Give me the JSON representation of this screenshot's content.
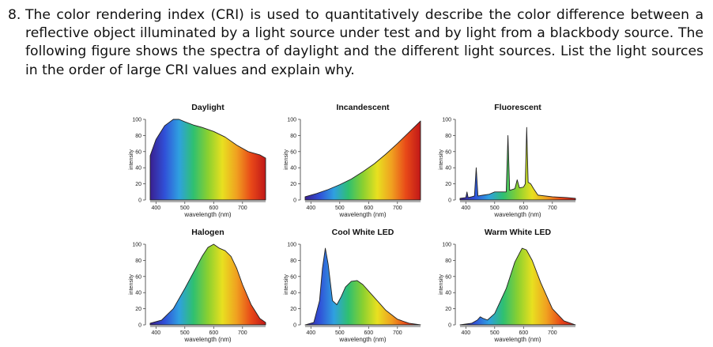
{
  "question": {
    "number": "8.",
    "text": "The color rendering index (CRI) is used to quantitatively describe the color difference between a reflective object illuminated by a light source under test and by light from a blackbody source. The following figure shows the spectra of daylight and the different light sources. List the light sources in the order of large CRI values and explain why."
  },
  "spectrum_colors": [
    "#3a1f8f",
    "#3050d8",
    "#2fa0e0",
    "#2fc070",
    "#8ad030",
    "#e8e020",
    "#f0a020",
    "#e84818",
    "#c01818"
  ],
  "chart_data": [
    {
      "type": "area",
      "title": "Daylight",
      "xlabel": "wavelength (nm)",
      "ylabel": "intensity",
      "xlim": [
        380,
        780
      ],
      "ylim": [
        0,
        100
      ],
      "xticks": [
        "400",
        "500",
        "600",
        "700"
      ],
      "yticks": [
        "0",
        "20",
        "40",
        "60",
        "80",
        "100"
      ],
      "x": [
        380,
        400,
        430,
        460,
        480,
        500,
        530,
        560,
        600,
        640,
        680,
        720,
        760,
        780
      ],
      "y": [
        55,
        75,
        92,
        100,
        100,
        97,
        93,
        90,
        85,
        78,
        68,
        60,
        56,
        52
      ]
    },
    {
      "type": "area",
      "title": "Incandescent",
      "xlabel": "wavelength (nm)",
      "ylabel": "intensity",
      "xlim": [
        380,
        780
      ],
      "ylim": [
        0,
        100
      ],
      "xticks": [
        "400",
        "500",
        "600",
        "700"
      ],
      "yticks": [
        "0",
        "20",
        "40",
        "60",
        "80",
        "100"
      ],
      "x": [
        380,
        420,
        460,
        500,
        540,
        580,
        620,
        660,
        700,
        740,
        780
      ],
      "y": [
        4,
        8,
        13,
        19,
        26,
        35,
        45,
        57,
        70,
        84,
        98
      ]
    },
    {
      "type": "area",
      "title": "Fluorescent",
      "xlabel": "wavelength (nm)",
      "ylabel": "intensity",
      "xlim": [
        380,
        780
      ],
      "ylim": [
        0,
        100
      ],
      "xticks": [
        "400",
        "500",
        "600",
        "700"
      ],
      "yticks": [
        "0",
        "20",
        "40",
        "60",
        "80",
        "100"
      ],
      "x": [
        380,
        400,
        404,
        408,
        420,
        430,
        436,
        442,
        460,
        480,
        500,
        540,
        546,
        552,
        570,
        578,
        586,
        600,
        606,
        611,
        616,
        625,
        635,
        650,
        700,
        750,
        780
      ],
      "y": [
        2,
        3,
        10,
        3,
        4,
        5,
        40,
        5,
        6,
        7,
        10,
        10,
        80,
        12,
        14,
        25,
        15,
        16,
        20,
        90,
        22,
        20,
        14,
        6,
        4,
        3,
        2
      ]
    },
    {
      "type": "area",
      "title": "Halogen",
      "xlabel": "wavelength (nm)",
      "ylabel": "intensity",
      "xlim": [
        380,
        780
      ],
      "ylim": [
        0,
        100
      ],
      "xticks": [
        "400",
        "500",
        "600",
        "700"
      ],
      "yticks": [
        "0",
        "20",
        "40",
        "60",
        "80",
        "100"
      ],
      "x": [
        380,
        420,
        460,
        500,
        530,
        560,
        580,
        600,
        620,
        640,
        660,
        680,
        700,
        730,
        760,
        780
      ],
      "y": [
        2,
        6,
        20,
        45,
        65,
        85,
        96,
        100,
        95,
        92,
        85,
        70,
        50,
        25,
        8,
        3
      ]
    },
    {
      "type": "area",
      "title": "Cool White LED",
      "xlabel": "wavelength (nm)",
      "ylabel": "intensity",
      "xlim": [
        380,
        780
      ],
      "ylim": [
        0,
        100
      ],
      "xticks": [
        "400",
        "500",
        "600",
        "700"
      ],
      "yticks": [
        "0",
        "20",
        "40",
        "60",
        "80",
        "100"
      ],
      "x": [
        380,
        410,
        430,
        440,
        450,
        460,
        475,
        490,
        505,
        520,
        540,
        560,
        580,
        600,
        630,
        660,
        700,
        740,
        780
      ],
      "y": [
        0,
        3,
        30,
        70,
        95,
        75,
        30,
        25,
        35,
        47,
        54,
        55,
        50,
        42,
        30,
        18,
        7,
        2,
        0
      ]
    },
    {
      "type": "area",
      "title": "Warm White LED",
      "xlabel": "wavelength (nm)",
      "ylabel": "intensity",
      "xlim": [
        380,
        780
      ],
      "ylim": [
        0,
        100
      ],
      "xticks": [
        "400",
        "500",
        "600",
        "700"
      ],
      "yticks": [
        "0",
        "20",
        "40",
        "60",
        "80",
        "100"
      ],
      "x": [
        380,
        420,
        440,
        450,
        460,
        475,
        500,
        540,
        570,
        595,
        610,
        630,
        660,
        700,
        740,
        780
      ],
      "y": [
        0,
        2,
        6,
        10,
        8,
        6,
        14,
        45,
        78,
        95,
        93,
        80,
        52,
        20,
        5,
        0
      ]
    }
  ]
}
